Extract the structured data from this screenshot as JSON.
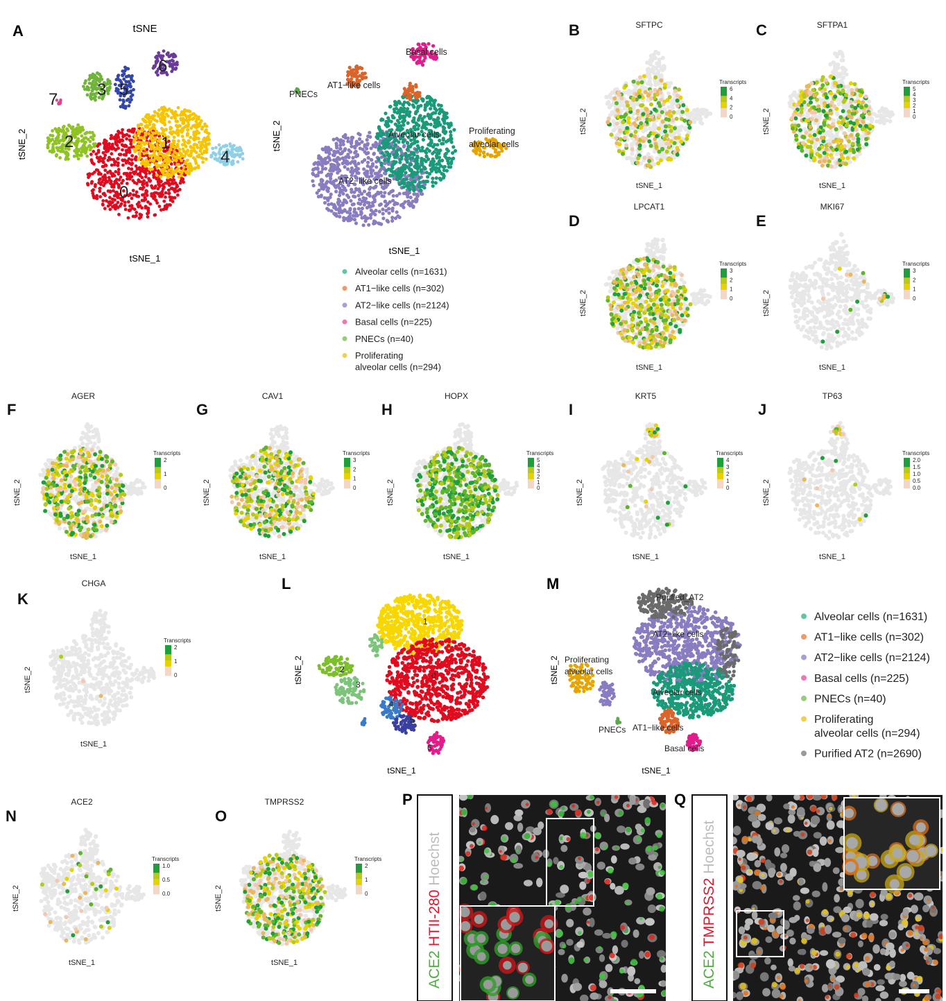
{
  "panel_letters": [
    "A",
    "B",
    "C",
    "D",
    "E",
    "F",
    "G",
    "H",
    "I",
    "J",
    "K",
    "L",
    "M",
    "N",
    "O",
    "P",
    "Q"
  ],
  "axis": {
    "x": "tSNE_1",
    "y": "tSNE_2"
  },
  "scale_title": "Transcripts",
  "colors": {
    "cluster0": "#e00b1e",
    "cluster1": "#f6c400",
    "cluster2": "#8fc323",
    "cluster3": "#6fb33a",
    "cluster4": "#8fd0e6",
    "cluster5": "#3347a8",
    "cluster6": "#6a3c9a",
    "cluster7": "#e0448f",
    "alveolar": "#1a9a79",
    "at1": "#d9652b",
    "at2": "#8a7cc0",
    "basal": "#e21c8a",
    "pnec": "#5aa84a",
    "prolif": "#e6a400",
    "purified": "#6b6b6b",
    "bg_cells": "#e7e7e7",
    "expr_low": "#f2c9b0",
    "expr_mid": "#e5d400",
    "expr_high": "#1f9e3c",
    "L1": "#f8d700",
    "L0": "#e00b1e",
    "L2": "#7cbf2a",
    "L3": "#7cc47a",
    "L4": "#3a7bc8",
    "L5": "#3a3fa0",
    "L6": "#e21c8a"
  },
  "panelA": {
    "title": "tSNE",
    "cluster_labels": [
      "0",
      "1",
      "2",
      "3",
      "4",
      "5",
      "6",
      "7"
    ]
  },
  "panelA2": {
    "labels": [
      "Basal cells",
      "AT1−like cells",
      "PNECs",
      "Alveolar cells",
      "Proliferating",
      "alveolar cells",
      "AT2−like cells"
    ]
  },
  "legend1": [
    {
      "label": "Alveolar cells (n=1631)",
      "color": "#63c5a6"
    },
    {
      "label": "AT1−like cells (n=302)",
      "color": "#eb9a6e"
    },
    {
      "label": "AT2−like cells (n=2124)",
      "color": "#a8a0d3"
    },
    {
      "label": "Basal cells (n=225)",
      "color": "#ef78b4"
    },
    {
      "label": "PNECs (n=40)",
      "color": "#96cc7a"
    },
    {
      "label": "Proliferating",
      "label2": "alveolar cells (n=294)",
      "color": "#f4cf4e"
    }
  ],
  "legend2": [
    {
      "label": "Alveolar cells (n=1631)",
      "color": "#63c5a6"
    },
    {
      "label": "AT1−like cells (n=302)",
      "color": "#eb9a6e"
    },
    {
      "label": "AT2−like cells (n=2124)",
      "color": "#a8a0d3"
    },
    {
      "label": "Basal cells (n=225)",
      "color": "#ef78b4"
    },
    {
      "label": "PNECs (n=40)",
      "color": "#96cc7a"
    },
    {
      "label": "Proliferating",
      "label2": "alveolar cells (n=294)",
      "color": "#f4cf4e"
    },
    {
      "label": "Purified AT2 (n=2690)",
      "color": "#9a9a9a"
    }
  ],
  "genes": {
    "B": {
      "name": "SFTPC",
      "ticks": [
        "6",
        "4",
        "2",
        "0"
      ]
    },
    "C": {
      "name": "SFTPA1",
      "ticks": [
        "5",
        "4",
        "3",
        "2",
        "1",
        "0"
      ]
    },
    "D": {
      "name": "LPCAT1",
      "ticks": [
        "3",
        "2",
        "1",
        "0"
      ]
    },
    "E": {
      "name": "MKI67",
      "ticks": [
        "3",
        "2",
        "1",
        "0"
      ]
    },
    "F": {
      "name": "AGER",
      "ticks": [
        "2",
        "1",
        "0"
      ]
    },
    "G": {
      "name": "CAV1",
      "ticks": [
        "3",
        "2",
        "1",
        "0"
      ]
    },
    "H": {
      "name": "HOPX",
      "ticks": [
        "5",
        "4",
        "3",
        "2",
        "1",
        "0"
      ]
    },
    "I": {
      "name": "KRT5",
      "ticks": [
        "4",
        "3",
        "2",
        "1",
        "0"
      ]
    },
    "J": {
      "name": "TP63",
      "ticks": [
        "2.0",
        "1.5",
        "1.0",
        "0.5",
        "0.0"
      ]
    },
    "K": {
      "name": "CHGA",
      "ticks": [
        "2",
        "1",
        "0"
      ]
    },
    "N": {
      "name": "ACE2",
      "ticks": [
        "1.0",
        "0.5",
        "0.0"
      ]
    },
    "O": {
      "name": "TMPRSS2",
      "ticks": [
        "2",
        "1",
        "0"
      ]
    }
  },
  "panelL": {
    "cluster_labels": [
      "1",
      "0",
      "2",
      "3",
      "4",
      "5",
      "6"
    ]
  },
  "panelM": {
    "labels": [
      "Purified_AT2",
      "AT2−like cells",
      "Proliferating",
      "alveolar cells",
      "Alveolar cells",
      "PNECs",
      "AT1−like cells",
      "Basal cells"
    ]
  },
  "panelP": {
    "stain_words": [
      "ACE2",
      "HTII-280",
      "Hoechst"
    ]
  },
  "panelQ": {
    "stain_words": [
      "ACE2",
      "TMPRSS2",
      "Hoechst"
    ]
  }
}
